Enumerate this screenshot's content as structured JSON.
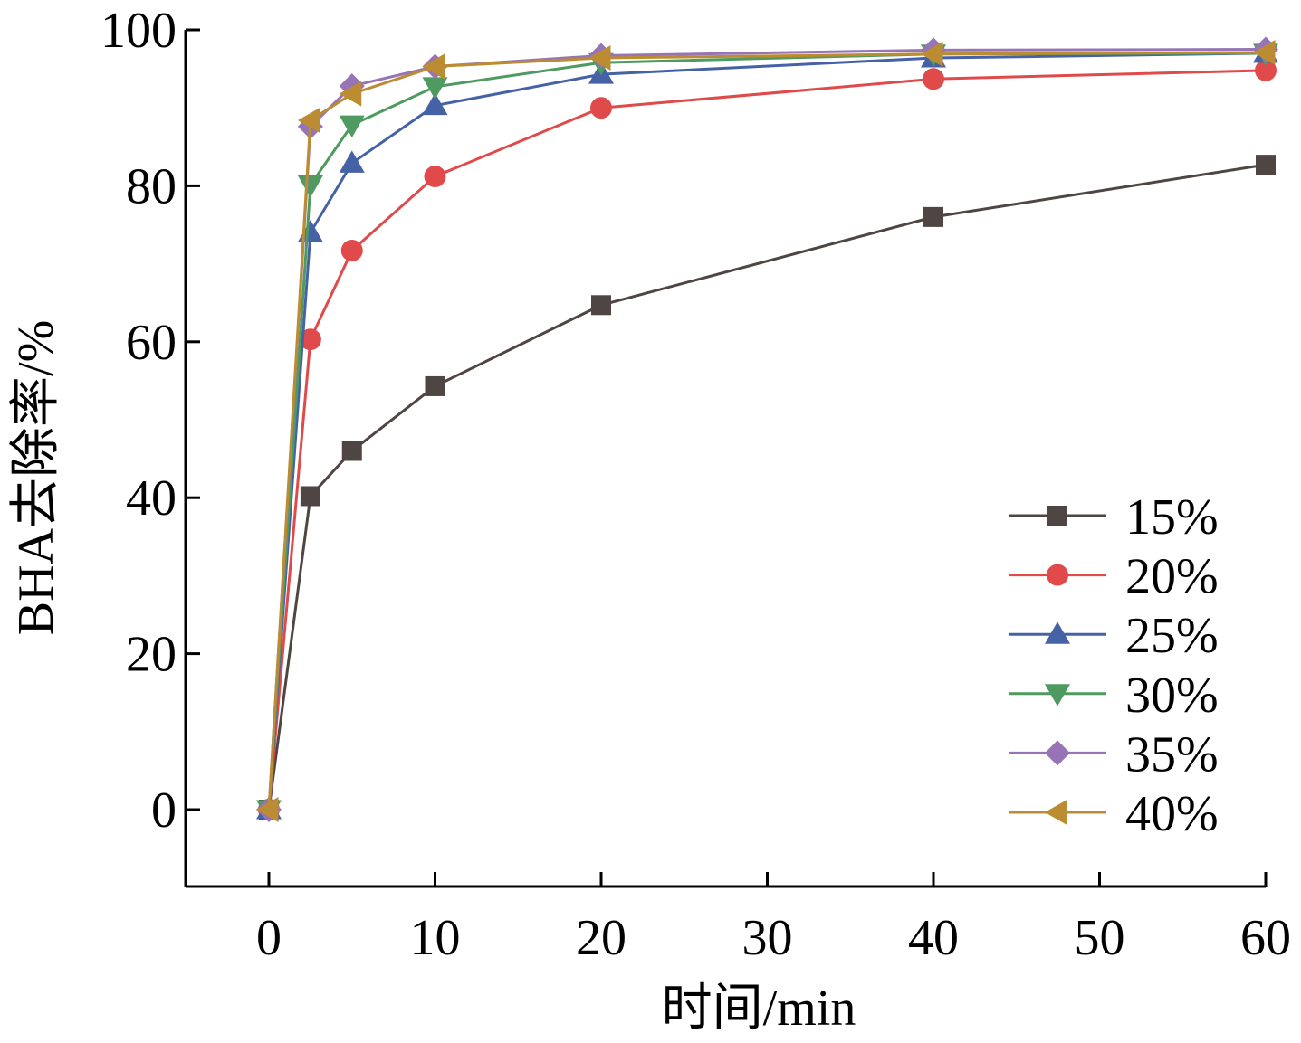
{
  "chart_data": {
    "type": "line",
    "title": "",
    "xlabel": "时间/min",
    "ylabel": "BHA去除率/%",
    "xlim": [
      -5,
      60
    ],
    "ylim": [
      -10,
      100
    ],
    "xticks": [
      0,
      10,
      20,
      30,
      40,
      50,
      60
    ],
    "yticks": [
      0,
      20,
      40,
      60,
      80,
      100
    ],
    "xtick_labels": [
      "0",
      "10",
      "20",
      "30",
      "40",
      "50",
      "60"
    ],
    "ytick_labels": [
      "0",
      "20",
      "40",
      "60",
      "80",
      "100"
    ],
    "grid": false,
    "legend_position": "bottom-right",
    "x": [
      0,
      2.5,
      5,
      10,
      20,
      40,
      60
    ],
    "series": [
      {
        "name": "15%",
        "color": "#4f4543",
        "marker": "square",
        "values": [
          0,
          40.2,
          46.0,
          54.3,
          64.7,
          76.0,
          82.7
        ]
      },
      {
        "name": "20%",
        "color": "#e04a4a",
        "marker": "circle",
        "values": [
          0,
          60.3,
          71.7,
          81.2,
          90.0,
          93.7,
          94.8
        ]
      },
      {
        "name": "25%",
        "color": "#4662a6",
        "marker": "triangle-up",
        "values": [
          0,
          74.0,
          82.9,
          90.3,
          94.3,
          96.4,
          97.0
        ]
      },
      {
        "name": "30%",
        "color": "#4e9a60",
        "marker": "triangle-down",
        "values": [
          0,
          80.1,
          87.8,
          92.7,
          95.8,
          96.9,
          97.0
        ]
      },
      {
        "name": "35%",
        "color": "#9674b6",
        "marker": "diamond",
        "values": [
          0,
          87.6,
          92.8,
          95.3,
          96.7,
          97.4,
          97.5
        ]
      },
      {
        "name": "40%",
        "color": "#bc8c32",
        "marker": "triangle-left",
        "values": [
          0,
          88.4,
          91.8,
          95.3,
          96.4,
          96.9,
          97.1
        ]
      }
    ]
  }
}
